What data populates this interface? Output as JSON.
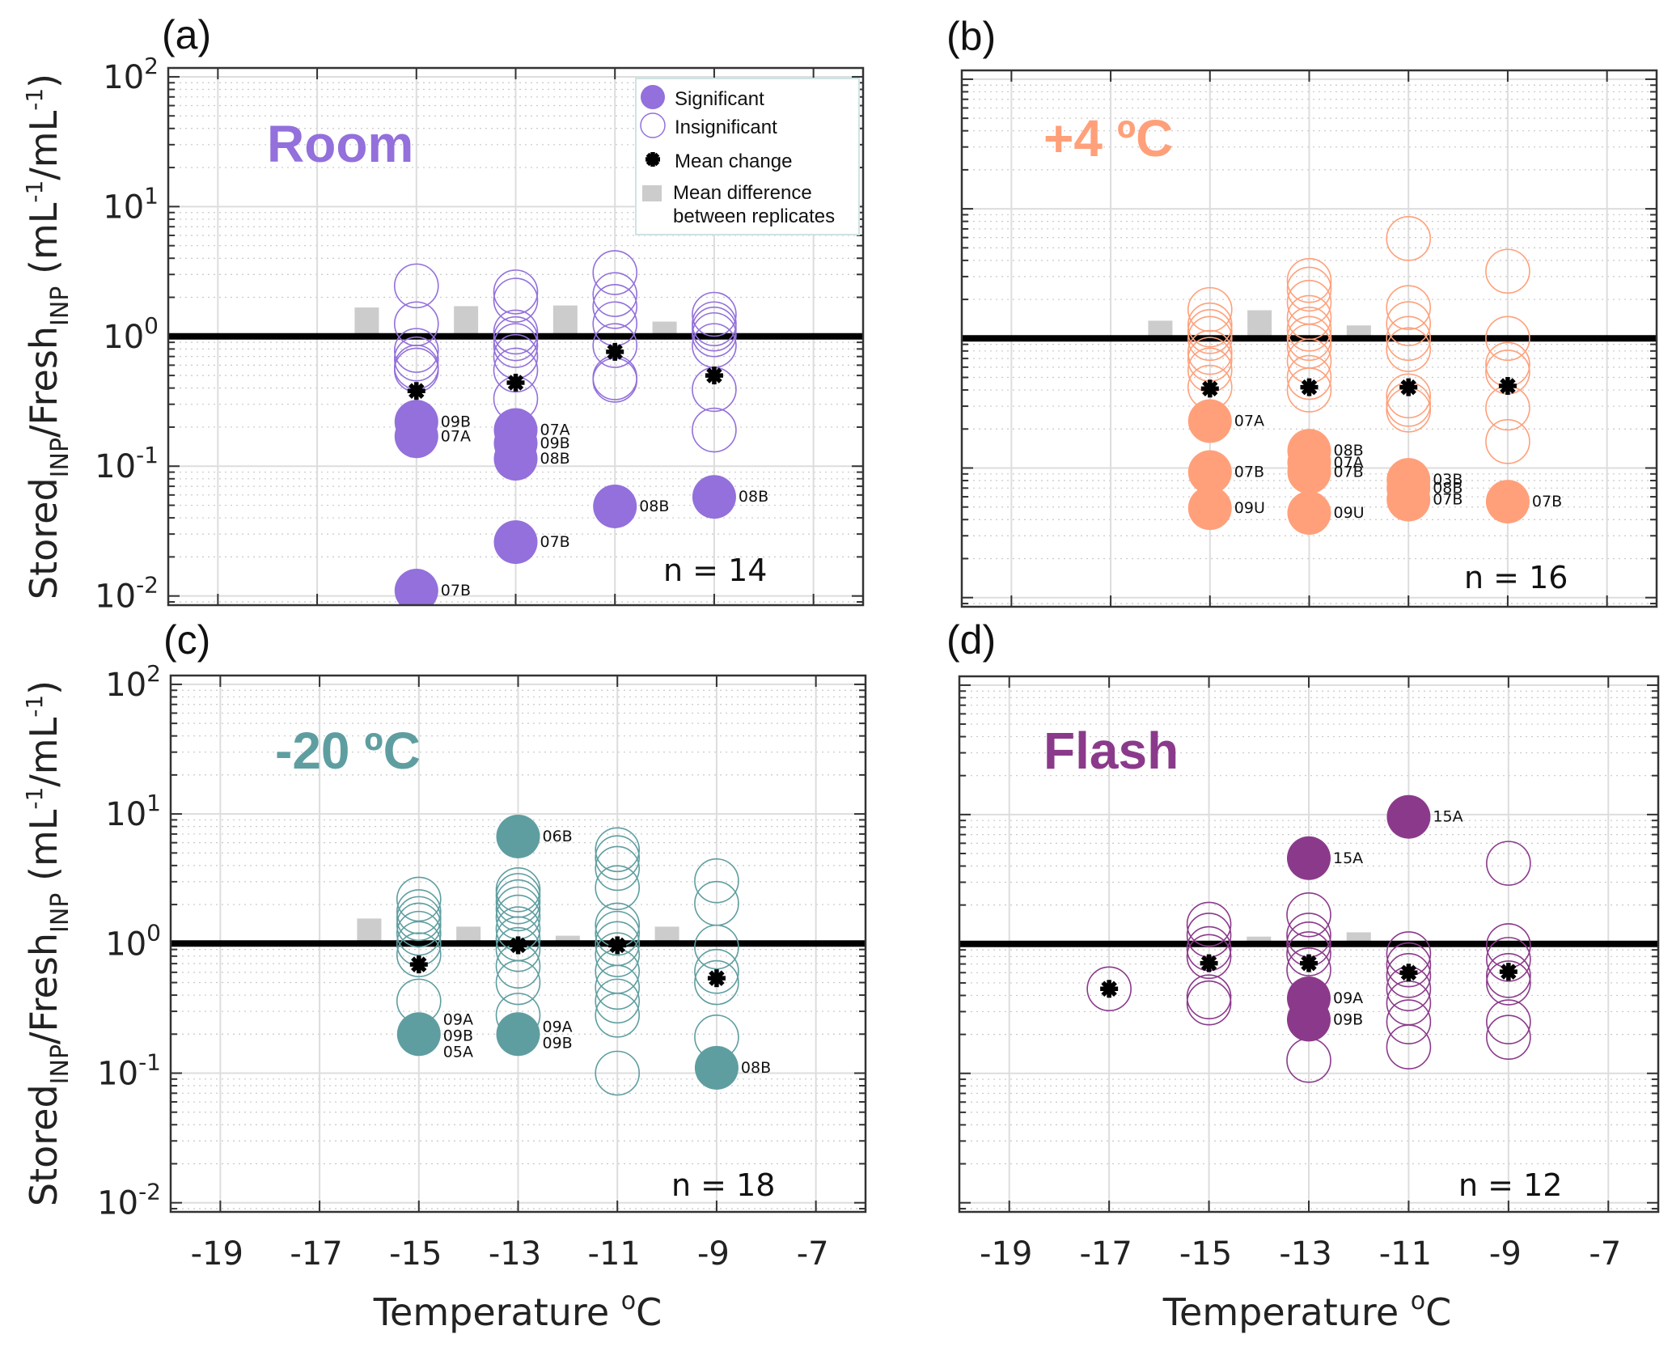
{
  "figure": {
    "y_axis_title": {
      "main1": "Stored",
      "sub1": "INP",
      "main2": "/Fresh",
      "sub2": "INP",
      "unit_open": " (mL",
      "unit_exp1": "-1",
      "unit_mid": "/mL",
      "unit_exp2": "-1",
      "unit_close": ")"
    },
    "x_axis_title": {
      "text": "Temperature ",
      "degree": "o",
      "unit": "C"
    },
    "legend": {
      "significant": "Significant",
      "insignificant": "Insignificant",
      "mean_change": "Mean change",
      "mean_difference_line1": "Mean difference",
      "mean_difference_line2": "between replicates"
    },
    "colors": {
      "room": "#9370db",
      "plus4": "#ffa07a",
      "minus20": "#5f9ea0",
      "flash": "#8b3a8b",
      "mean_diff_bar": "#cccccc",
      "reference_line": "#000000"
    }
  },
  "chart_data": [
    {
      "type": "scatter",
      "panel": "(a)",
      "title": "Room",
      "color": "#9370db",
      "n_label": "n = 14",
      "xlabel": "",
      "ylabel": "Stored_INP/Fresh_INP (mL-1/mL-1)",
      "xscale": "linear",
      "yscale": "log",
      "xlim": [
        -20,
        -6
      ],
      "ylim": [
        0.0085,
        117
      ],
      "xticks": [
        -19,
        -17,
        -15,
        -13,
        -11,
        -9,
        -7
      ],
      "xtick_labels": [
        "",
        "",
        "",
        "",
        "",
        "",
        ""
      ],
      "yticks": [
        0.01,
        0.1,
        1,
        10,
        100
      ],
      "ytick_labels": [
        {
          "base": "10",
          "exp": "-2"
        },
        {
          "base": "10",
          "exp": "-1"
        },
        {
          "base": "10",
          "exp": "0"
        },
        {
          "base": "10",
          "exp": "1"
        },
        {
          "base": "10",
          "exp": "2"
        }
      ],
      "grid": true,
      "reference_line": 1,
      "legend_position": "top-right",
      "show_legend": true,
      "insignificant": [
        {
          "x": -15,
          "y": [
            2.45,
            1.25,
            0.78,
            0.67,
            0.58,
            0.55
          ]
        },
        {
          "x": -13,
          "y": [
            2.2,
            1.9,
            1.08,
            0.96,
            0.85,
            0.7,
            0.55,
            0.33
          ]
        },
        {
          "x": -11,
          "y": [
            3.1,
            2.1,
            1.7,
            1.25,
            0.85,
            0.48,
            0.46
          ]
        },
        {
          "x": -9,
          "y": [
            1.48,
            1.25,
            1.14,
            1.03,
            0.85,
            0.39,
            0.19
          ]
        }
      ],
      "significant": [
        {
          "x": -15,
          "y": 0.22,
          "label": "09B"
        },
        {
          "x": -15,
          "y": 0.17,
          "label": "07A"
        },
        {
          "x": -15,
          "y": 0.011,
          "label": "07B"
        },
        {
          "x": -13,
          "y": 0.19,
          "label": "07A"
        },
        {
          "x": -13,
          "y": 0.15,
          "label": "09B"
        },
        {
          "x": -13,
          "y": 0.114,
          "label": "08B"
        },
        {
          "x": -13,
          "y": 0.026,
          "label": "07B"
        },
        {
          "x": -11,
          "y": 0.049,
          "label": "08B"
        },
        {
          "x": -9,
          "y": 0.058,
          "label": "08B"
        }
      ],
      "mean_change": [
        {
          "x": -15,
          "y": 0.38
        },
        {
          "x": -13,
          "y": 0.44
        },
        {
          "x": -11,
          "y": 0.76
        },
        {
          "x": -9,
          "y": 0.5
        }
      ],
      "mean_difference": [
        {
          "x": -16,
          "y": 1.67
        },
        {
          "x": -14,
          "y": 1.71
        },
        {
          "x": -12,
          "y": 1.73
        },
        {
          "x": -10,
          "y": 1.3
        }
      ]
    },
    {
      "type": "scatter",
      "panel": "(b)",
      "title": "+4 ºC",
      "color": "#ffa07a",
      "n_label": "n = 16",
      "xlabel": "",
      "ylabel": "",
      "xscale": "linear",
      "yscale": "log",
      "xlim": [
        -20,
        -6
      ],
      "ylim": [
        0.0085,
        117
      ],
      "xticks": [
        -19,
        -17,
        -15,
        -13,
        -11,
        -9,
        -7
      ],
      "xtick_labels": [
        "",
        "",
        "",
        "",
        "",
        "",
        ""
      ],
      "yticks": [
        0.01,
        0.1,
        1,
        10,
        100
      ],
      "ytick_labels": [],
      "grid": true,
      "reference_line": 1,
      "show_legend": false,
      "insignificant": [
        {
          "x": -15,
          "y": [
            1.67,
            1.27,
            1.13,
            1.0,
            0.78,
            0.69,
            0.57,
            0.42
          ]
        },
        {
          "x": -13,
          "y": [
            2.8,
            2.4,
            1.9,
            1.45,
            1.18,
            1.0,
            0.87,
            0.67,
            0.5,
            0.4
          ]
        },
        {
          "x": -11,
          "y": [
            5.9,
            1.73,
            1.3,
            1.0,
            0.82,
            0.36,
            0.31,
            0.28
          ]
        },
        {
          "x": -9,
          "y": [
            3.3,
            1.0,
            0.63,
            0.55,
            0.29,
            0.16
          ]
        }
      ],
      "significant": [
        {
          "x": -15,
          "y": 0.23,
          "label": "07A"
        },
        {
          "x": -15,
          "y": 0.093,
          "label": "07B"
        },
        {
          "x": -15,
          "y": 0.049,
          "label": "09U"
        },
        {
          "x": -13,
          "y": 0.136,
          "label": "08B"
        },
        {
          "x": -13,
          "y": 0.11,
          "label": "07A"
        },
        {
          "x": -13,
          "y": 0.093,
          "label": "07B"
        },
        {
          "x": -13,
          "y": 0.045,
          "label": "09U"
        },
        {
          "x": -11,
          "y": 0.081,
          "label": "03B"
        },
        {
          "x": -11,
          "y": 0.07,
          "label": "08B"
        },
        {
          "x": -11,
          "y": 0.057,
          "label": "07B"
        },
        {
          "x": -9,
          "y": 0.055,
          "label": "07B"
        }
      ],
      "mean_change": [
        {
          "x": -15,
          "y": 0.41
        },
        {
          "x": -13,
          "y": 0.42
        },
        {
          "x": -11,
          "y": 0.42
        },
        {
          "x": -9,
          "y": 0.43
        }
      ],
      "mean_difference": [
        {
          "x": -16,
          "y": 1.37
        },
        {
          "x": -14,
          "y": 1.65
        },
        {
          "x": -12,
          "y": 1.26
        }
      ]
    },
    {
      "type": "scatter",
      "panel": "(c)",
      "title": "-20 ºC",
      "color": "#5f9ea0",
      "n_label": "n = 18",
      "xlabel": "Temperature ºC",
      "ylabel": "Stored_INP/Fresh_INP (mL-1/mL-1)",
      "xscale": "linear",
      "yscale": "log",
      "xlim": [
        -20,
        -6
      ],
      "ylim": [
        0.0085,
        117
      ],
      "xticks": [
        -19,
        -17,
        -15,
        -13,
        -11,
        -9,
        -7
      ],
      "xtick_labels": [
        "-19",
        "-17",
        "-15",
        "-13",
        "-11",
        "-9",
        "-7"
      ],
      "yticks": [
        0.01,
        0.1,
        1,
        10,
        100
      ],
      "ytick_labels": [
        {
          "base": "10",
          "exp": "-2"
        },
        {
          "base": "10",
          "exp": "-1"
        },
        {
          "base": "10",
          "exp": "0"
        },
        {
          "base": "10",
          "exp": "1"
        },
        {
          "base": "10",
          "exp": "2"
        }
      ],
      "grid": true,
      "reference_line": 1,
      "show_legend": false,
      "insignificant": [
        {
          "x": -15,
          "y": [
            2.2,
            1.76,
            1.56,
            1.39,
            1.2,
            1.0,
            0.82,
            0.36
          ]
        },
        {
          "x": -13,
          "y": [
            2.6,
            2.35,
            2.1,
            1.85,
            1.6,
            1.3,
            1.09,
            0.9,
            0.67,
            0.5,
            0.28
          ]
        },
        {
          "x": -11,
          "y": [
            5.3,
            4.6,
            3.8,
            2.7,
            1.39,
            1.2,
            1.0,
            0.82,
            0.61,
            0.46,
            0.36,
            0.28,
            0.1
          ]
        },
        {
          "x": -9,
          "y": [
            3.05,
            2.04,
            0.94,
            0.61,
            0.5,
            0.19
          ]
        }
      ],
      "significant": [
        {
          "x": -15,
          "y": 0.2,
          "label": "09A\n09B\n05A"
        },
        {
          "x": -13,
          "y": 6.7,
          "label": "06B"
        },
        {
          "x": -13,
          "y": 0.2,
          "label": "09A\n09B"
        },
        {
          "x": -9,
          "y": 0.11,
          "label": "08B"
        }
      ],
      "mean_change": [
        {
          "x": -15,
          "y": 0.69
        },
        {
          "x": -13,
          "y": 0.97
        },
        {
          "x": -11,
          "y": 0.97
        },
        {
          "x": -9,
          "y": 0.54
        }
      ],
      "mean_difference": [
        {
          "x": -16,
          "y": 1.56
        },
        {
          "x": -14,
          "y": 1.35
        },
        {
          "x": -12,
          "y": 1.15
        },
        {
          "x": -10,
          "y": 1.35
        }
      ]
    },
    {
      "type": "scatter",
      "panel": "(d)",
      "title": "Flash",
      "color": "#8b3a8b",
      "n_label": "n = 12",
      "xlabel": "Temperature ºC",
      "ylabel": "",
      "xscale": "linear",
      "yscale": "log",
      "xlim": [
        -20,
        -6
      ],
      "ylim": [
        0.0085,
        117
      ],
      "xticks": [
        -19,
        -17,
        -15,
        -13,
        -11,
        -9,
        -7
      ],
      "xtick_labels": [
        "-19",
        "-17",
        "-15",
        "-13",
        "-11",
        "-9",
        "-7"
      ],
      "yticks": [
        0.01,
        0.1,
        1,
        10,
        100
      ],
      "ytick_labels": [],
      "grid": true,
      "reference_line": 1,
      "show_legend": false,
      "insignificant": [
        {
          "x": -17,
          "y": [
            0.45
          ]
        },
        {
          "x": -15,
          "y": [
            1.42,
            1.17,
            0.92,
            0.8,
            0.39,
            0.35
          ]
        },
        {
          "x": -13,
          "y": [
            1.68,
            1.17,
            1.0,
            0.84,
            0.63,
            0.126
          ]
        },
        {
          "x": -11,
          "y": [
            0.84,
            0.69,
            0.57,
            0.45,
            0.35,
            0.25,
            0.16
          ]
        },
        {
          "x": -9,
          "y": [
            4.2,
            0.97,
            0.76,
            0.57,
            0.5,
            0.25,
            0.19
          ]
        }
      ],
      "significant": [
        {
          "x": -13,
          "y": 4.6,
          "label": "15A"
        },
        {
          "x": -13,
          "y": 0.38,
          "label": "09A"
        },
        {
          "x": -13,
          "y": 0.26,
          "label": "09B"
        },
        {
          "x": -11,
          "y": 9.6,
          "label": "15A"
        }
      ],
      "mean_change": [
        {
          "x": -17,
          "y": 0.45
        },
        {
          "x": -15,
          "y": 0.71
        },
        {
          "x": -13,
          "y": 0.71
        },
        {
          "x": -11,
          "y": 0.6
        },
        {
          "x": -9,
          "y": 0.61
        }
      ],
      "mean_difference": [
        {
          "x": -14,
          "y": 1.14
        },
        {
          "x": -12,
          "y": 1.23
        }
      ]
    }
  ]
}
